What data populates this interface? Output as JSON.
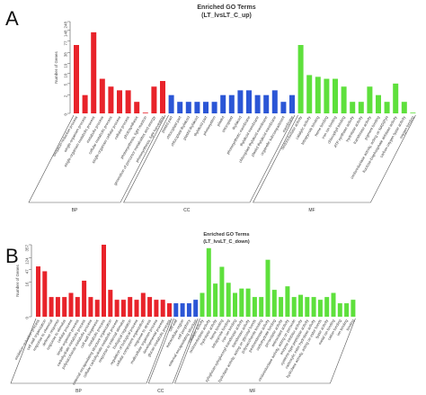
{
  "panels": [
    {
      "label": "A",
      "title": "Enriched GO Terms",
      "subtitle": "(LT_lvsLT_C_up)",
      "ylabel": "Number of Genes",
      "yticks": [
        "0",
        "2",
        "5",
        "10",
        "19",
        "38",
        "77",
        "148",
        "248"
      ],
      "groups": [
        {
          "name": "BP",
          "color": "#e8232a"
        },
        {
          "name": "CC",
          "color": "#2b56d6"
        },
        {
          "name": "MF",
          "color": "#5ee03c"
        }
      ]
    },
    {
      "label": "B",
      "title": "Enriched GO Terms",
      "subtitle": "(LT_lvsLT_C_down)",
      "ylabel": "Number of Genes",
      "yticks": [
        "0",
        "16",
        "47",
        "124",
        "357"
      ],
      "groups": [
        {
          "name": "BP",
          "color": "#e8232a"
        },
        {
          "name": "CC",
          "color": "#2b56d6"
        },
        {
          "name": "MF",
          "color": "#5ee03c"
        }
      ]
    }
  ],
  "chart_data": [
    {
      "type": "bar",
      "title": "Enriched GO Terms",
      "subtitle": "(LT_lvsLT_C_up)",
      "ylabel": "Number of Genes",
      "ylim": [
        0,
        248
      ],
      "yscale": "log",
      "series": [
        {
          "name": "BP",
          "color": "#e8232a",
          "categories": [
            "oxidation-reduction process",
            "single-organism process",
            "single-organism metabolic process",
            "metabolic process",
            "cellular metabolic process",
            "single-organism cellular process",
            "cellular process",
            "photosynthesis",
            "photosynthesis, light reaction",
            "generation of precursor metabolites and energy",
            "photosynthesis, light harvesting"
          ],
          "values": [
            60,
            2,
            130,
            7,
            4,
            3,
            3,
            1,
            0,
            4,
            6
          ]
        },
        {
          "name": "CC",
          "color": "#2b56d6",
          "categories": [
            "plastid part",
            "chloroplast part",
            "chloroplast thylakoid",
            "plastid thylakoid",
            "thylakoid part",
            "photosystem",
            "plastid",
            "chloroplast",
            "thylakoid",
            "photosynthetic membrane",
            "thylakoid membrane",
            "chloroplast thylakoid membrane",
            "plastid thylakoid membrane",
            "organelle subcompartment",
            "membrane"
          ],
          "values": [
            2,
            1,
            1,
            1,
            1,
            1,
            2,
            2,
            3,
            3,
            2,
            2,
            3,
            1,
            2
          ]
        },
        {
          "name": "MF",
          "color": "#5ee03c",
          "categories": [
            "oxidoreductase activity",
            "catalytic activity",
            "tetrapyrrole binding",
            "heme binding",
            "iron ion binding",
            "chlorophyll binding",
            "ATP synthase activity",
            "hydrolase activity",
            "transferase activity",
            "pigment binding",
            "oxidoreductase activity, acting on NAD(P)H",
            "fructose-bisphosphate aldolase activity",
            "carbon-oxygen lyase activity",
            "oxygen binding"
          ],
          "values": [
            60,
            9,
            8,
            7,
            7,
            4,
            1,
            1,
            4,
            2,
            1,
            5,
            1,
            0
          ]
        }
      ]
    },
    {
      "type": "bar",
      "title": "Enriched GO Terms",
      "subtitle": "(LT_lvsLT_C_down)",
      "ylabel": "Number of Genes",
      "ylim": [
        0,
        357
      ],
      "yscale": "log",
      "series": [
        {
          "name": "BP",
          "color": "#e8232a",
          "categories": [
            "oxidation-reduction process",
            "cell wall organization",
            "response to chemical",
            "defense response",
            "response to stimulus",
            "cellular process",
            "single-organism process",
            "carbohydrate metabolic process",
            "polysaccharide metabolic process",
            "cell wall biogenesis",
            "metabolic process",
            "external encapsulating structure organization",
            "cellular carbohydrate metabolic process",
            "response to external stimulus",
            "biological regulation",
            "regulation of biological process",
            "cellular component organization",
            "response to stress",
            "multicellular organism process",
            "developmental process",
            "glucan metabolic process"
          ],
          "values": [
            60,
            40,
            4,
            4,
            4,
            6,
            4,
            18,
            4,
            3,
            358,
            8,
            3,
            3,
            4,
            3,
            6,
            4,
            3,
            3,
            2
          ]
        },
        {
          "name": "CC",
          "color": "#2b56d6",
          "categories": [
            "cell wall",
            "extracellular region",
            "cell periphery",
            "external encapsulating structure"
          ],
          "values": [
            2,
            2,
            2,
            3
          ]
        },
        {
          "name": "MF",
          "color": "#5ee03c",
          "categories": [
            "catalytic activity",
            "oxidoreductase activity",
            "hydrolase activity",
            "heme binding",
            "tetrapyrrole binding",
            "iron ion binding",
            "xyloglucan:xyloglucosyl transferase activity",
            "transferase activity",
            "hydrolase activity, acting on glycosyl bonds",
            "polysaccharide binding",
            "pectinesterase activity",
            "carbohydrate binding",
            "peroxidase activity",
            "antioxidant activity",
            "oxidoreductase activity, acting on peroxide",
            "enzyme inhibitor activity",
            "cysteine-type peptidase activity",
            "carboxylic ester hydrolase activity",
            "hydrolase activity, acting on ester bonds",
            "lyase activity",
            "metal ion binding",
            "cation binding",
            "ion binding",
            "binding"
          ],
          "values": [
            6,
            270,
            14,
            58,
            15,
            6,
            9,
            9,
            4,
            4,
            104,
            8,
            4,
            11,
            4,
            5,
            4,
            4,
            3,
            4,
            6,
            2,
            2,
            3
          ]
        }
      ]
    }
  ]
}
